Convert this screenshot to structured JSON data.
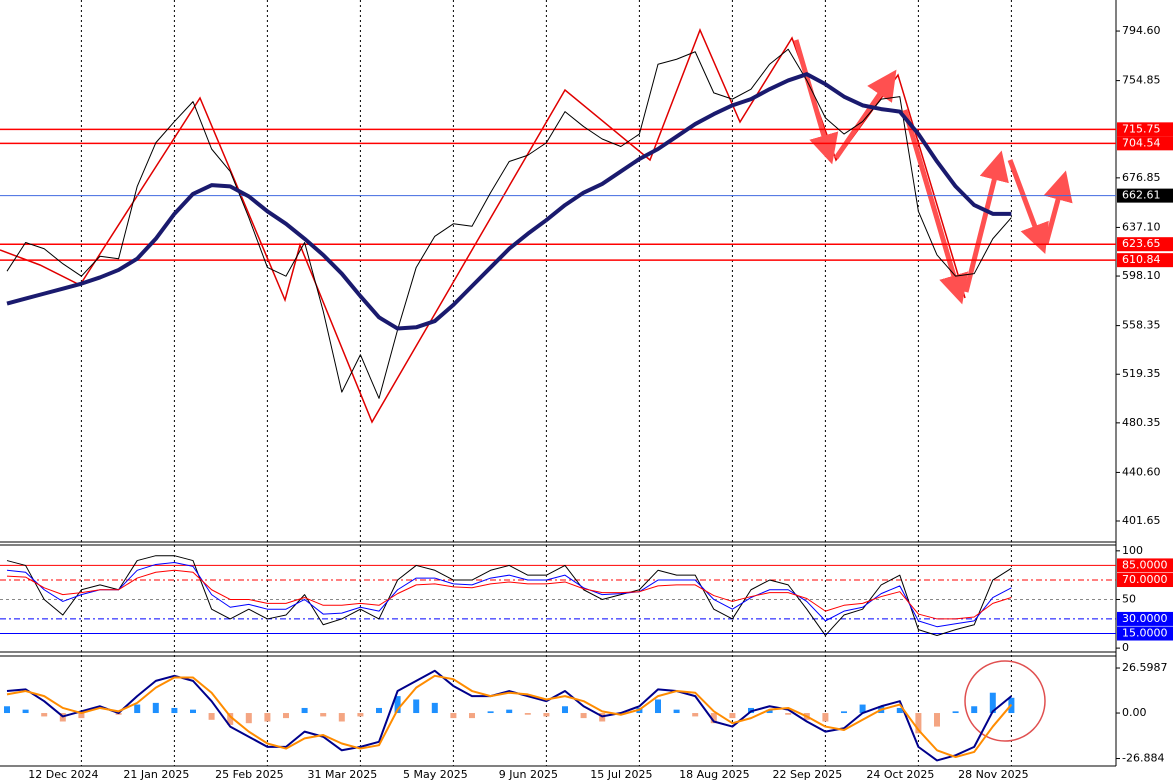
{
  "chart_data": [
    {
      "type": "line",
      "categories": [
        null,
        null,
        null,
        null,
        "12 Dec 2024",
        null,
        null,
        null,
        null,
        "21 Jan 2025",
        null,
        null,
        null,
        null,
        "25 Feb 2025",
        null,
        null,
        null,
        null,
        "31 Mar 2025",
        null,
        null,
        null,
        null,
        "5 May 2025",
        null,
        null,
        null,
        null,
        "9 Jun 2025",
        null,
        null,
        null,
        null,
        "15 Jul 2025",
        null,
        null,
        null,
        null,
        "18 Aug 2025",
        null,
        null,
        null,
        null,
        "22 Sep 2025",
        null,
        null,
        null,
        null,
        "24 Oct 2025",
        null,
        null,
        null,
        null,
        "28 Nov 2025"
      ],
      "series": [
        {
          "color": "#000000",
          "values": [
            602,
            625,
            620,
            608,
            598,
            614,
            612,
            670,
            705,
            722,
            738,
            700,
            682,
            645,
            605,
            598,
            625,
            570,
            505,
            535,
            500,
            555,
            605,
            630,
            640,
            638,
            665,
            690,
            695,
            705,
            730,
            718,
            708,
            702,
            712,
            768,
            772,
            778,
            745,
            740,
            748,
            768,
            780,
            755,
            725,
            712,
            722,
            740,
            742,
            650,
            615,
            598,
            600,
            628,
            645
          ]
        },
        {
          "color": "#1a1a6e",
          "values": [
            576,
            580,
            584,
            588,
            592,
            597,
            603,
            612,
            628,
            648,
            664,
            671,
            670,
            662,
            650,
            640,
            628,
            615,
            600,
            582,
            565,
            556,
            557,
            562,
            575,
            590,
            605,
            620,
            632,
            643,
            655,
            665,
            672,
            682,
            692,
            700,
            710,
            720,
            728,
            735,
            740,
            748,
            755,
            760,
            752,
            742,
            735,
            732,
            730,
            712,
            690,
            670,
            655,
            648,
            648
          ]
        }
      ],
      "ylim": [
        386.4,
        819.5
      ],
      "yticks": [
        {
          "value": 794.6,
          "label": "794.60"
        },
        754.85,
        676.85,
        {
          "value": 637.1,
          "label": "637.10"
        },
        {
          "value": 598.1,
          "label": "598.10"
        },
        558.35,
        519.35,
        480.35,
        {
          "value": 440.6,
          "label": "440.60"
        },
        401.65
      ],
      "levels": [
        {
          "value": 715.75,
          "color": "#ff0000"
        },
        {
          "value": 704.54,
          "color": "#ff0000"
        },
        {
          "value": 662.61,
          "color": "#000000",
          "line_color": "#4169e1"
        },
        {
          "value": 623.65,
          "color": "#ff0000"
        },
        {
          "value": 610.84,
          "color": "#ff0000"
        }
      ]
    },
    {
      "type": "line",
      "series": [
        {
          "color": "#000000",
          "values": [
            90,
            85,
            50,
            34,
            60,
            65,
            60,
            90,
            95,
            95,
            90,
            40,
            30,
            40,
            30,
            34,
            55,
            24,
            30,
            40,
            30,
            70,
            85,
            80,
            70,
            70,
            80,
            85,
            75,
            75,
            85,
            60,
            50,
            55,
            60,
            80,
            75,
            75,
            40,
            30,
            60,
            70,
            65,
            40,
            13,
            34,
            40,
            65,
            75,
            19,
            13,
            19,
            24,
            70,
            82
          ]
        },
        {
          "color": "#0000ff",
          "values": [
            80,
            78,
            60,
            48,
            55,
            60,
            60,
            80,
            86,
            88,
            84,
            55,
            42,
            45,
            40,
            40,
            50,
            35,
            36,
            42,
            38,
            60,
            72,
            72,
            66,
            65,
            72,
            75,
            70,
            70,
            75,
            62,
            55,
            56,
            58,
            70,
            70,
            70,
            50,
            40,
            52,
            60,
            60,
            48,
            28,
            38,
            42,
            56,
            64,
            28,
            22,
            25,
            28,
            52,
            62
          ]
        },
        {
          "color": "#ff0000",
          "values": [
            74,
            73,
            62,
            55,
            57,
            60,
            60,
            72,
            78,
            80,
            78,
            60,
            50,
            50,
            46,
            46,
            52,
            44,
            44,
            46,
            44,
            56,
            65,
            66,
            63,
            62,
            66,
            68,
            66,
            66,
            68,
            61,
            57,
            57,
            58,
            64,
            65,
            65,
            54,
            48,
            53,
            57,
            57,
            51,
            38,
            44,
            46,
            53,
            58,
            35,
            30,
            30,
            32,
            46,
            52
          ]
        }
      ],
      "ylim": [
        -4,
        106
      ],
      "yticks": [
        100,
        50,
        0
      ],
      "levels": [
        {
          "value": 85,
          "label": "85.0000",
          "color": "#ff0000",
          "dash": "solid"
        },
        {
          "value": 70,
          "label": "70.0000",
          "color": "#ff0000",
          "dash": "dashdot"
        },
        {
          "value": 30,
          "label": "30.0000",
          "color": "#0000ff",
          "dash": "dashdot"
        },
        {
          "value": 15,
          "label": "15.0000",
          "color": "#0000ff",
          "dash": "solid"
        }
      ]
    },
    {
      "type": "line",
      "histogram": {
        "up_color": "#1e90ff",
        "down_color": "#f4a582",
        "values": [
          4,
          2,
          -2,
          -5,
          -3,
          0,
          -1,
          5,
          6,
          3,
          2,
          -4,
          -7,
          -6,
          -5,
          -3,
          3,
          -2,
          -5,
          -2,
          3,
          10,
          8,
          6,
          -3,
          -3,
          1,
          2,
          -1,
          -2,
          4,
          -3,
          -5,
          0,
          3,
          8,
          2,
          -2,
          -6,
          -3,
          3,
          2,
          -1,
          -4,
          -5,
          1,
          5,
          4,
          3,
          -12,
          -8,
          1,
          4,
          12,
          9
        ]
      },
      "series": [
        {
          "color": "#00008b",
          "values": [
            13,
            14,
            7,
            -2,
            1,
            4,
            0,
            10,
            19,
            22,
            19,
            7,
            -8,
            -14,
            -20,
            -20,
            -11,
            -14,
            -22,
            -20,
            -17,
            13,
            19,
            25,
            16,
            10,
            10,
            13,
            10,
            7,
            13,
            4,
            -2,
            0,
            4,
            14,
            13,
            10,
            -5,
            -8,
            1,
            4,
            2,
            -5,
            -11,
            -9,
            0,
            4,
            7,
            -20,
            -28,
            -25,
            -20,
            1,
            10
          ]
        },
        {
          "color": "#ff8c00",
          "values": [
            11,
            13,
            10,
            3,
            0,
            3,
            1,
            6,
            15,
            21,
            21,
            12,
            -2,
            -11,
            -18,
            -21,
            -15,
            -13,
            -18,
            -21,
            -19,
            2,
            15,
            22,
            20,
            13,
            10,
            12,
            11,
            8,
            10,
            7,
            1,
            -1,
            2,
            10,
            13,
            12,
            1,
            -6,
            -3,
            2,
            3,
            -2,
            -8,
            -10,
            -4,
            2,
            5,
            -10,
            -22,
            -26,
            -23,
            -8,
            5
          ]
        }
      ],
      "ylim": [
        -31.3,
        33.7
      ],
      "yticks": [
        26.5987,
        {
          "value": 0,
          "label": "0.00"
        },
        -26.884
      ]
    }
  ]
}
